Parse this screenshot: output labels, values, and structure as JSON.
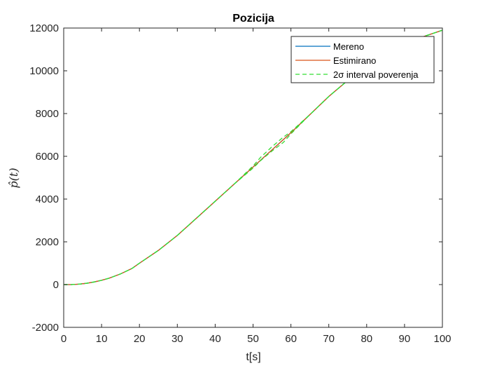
{
  "chart_data": {
    "type": "line",
    "title": "Pozicija",
    "xlabel": "t[s]",
    "ylabel": "p̂(t)",
    "xlim": [
      0,
      100
    ],
    "ylim": [
      -2000,
      12000
    ],
    "xticks": [
      0,
      10,
      20,
      30,
      40,
      50,
      60,
      70,
      80,
      90,
      100
    ],
    "yticks": [
      -2000,
      0,
      2000,
      4000,
      6000,
      8000,
      10000,
      12000
    ],
    "grid": false,
    "legend_position": "top-right",
    "colors": {
      "mereno": "#0072BD",
      "estimirano": "#D95319",
      "interval": "#33DD33"
    },
    "series": [
      {
        "name": "Mereno",
        "style": "solid",
        "x": [
          0,
          2,
          4,
          6,
          8,
          10,
          12,
          15,
          18,
          20,
          25,
          30,
          35,
          40,
          45,
          50,
          55,
          60,
          65,
          70,
          75,
          80,
          85,
          90,
          95,
          100
        ],
        "y": [
          0,
          0,
          20,
          60,
          120,
          200,
          300,
          500,
          750,
          1000,
          1600,
          2300,
          3100,
          3900,
          4700,
          5500,
          6300,
          7100,
          7950,
          8800,
          9550,
          10250,
          10800,
          11250,
          11600,
          11900
        ]
      },
      {
        "name": "Estimirano",
        "style": "solid",
        "x": [
          0,
          2,
          4,
          6,
          8,
          10,
          12,
          15,
          18,
          20,
          25,
          30,
          35,
          40,
          45,
          50,
          55,
          60,
          65,
          70,
          75,
          80,
          85,
          90,
          95,
          100
        ],
        "y": [
          0,
          0,
          20,
          60,
          120,
          200,
          300,
          500,
          750,
          1000,
          1600,
          2300,
          3100,
          3900,
          4700,
          5500,
          6300,
          7100,
          7950,
          8800,
          9550,
          10250,
          10800,
          11250,
          11600,
          11900
        ]
      },
      {
        "name": "2σ interval poverenja",
        "style": "dashed",
        "x": [
          0,
          2,
          4,
          6,
          8,
          10,
          12,
          15,
          18,
          20,
          25,
          30,
          35,
          40,
          45,
          50,
          52,
          55,
          58,
          60,
          65,
          70,
          75,
          80,
          85,
          90,
          95,
          100
        ],
        "y": [
          0,
          0,
          20,
          60,
          120,
          200,
          300,
          500,
          750,
          1000,
          1600,
          2300,
          3100,
          3900,
          4700,
          5550,
          5950,
          6450,
          6900,
          7150,
          7950,
          8800,
          9550,
          10250,
          10800,
          11250,
          11600,
          11900
        ]
      },
      {
        "name": "2σ interval poverenja",
        "style": "dashed",
        "x": [
          0,
          2,
          4,
          6,
          8,
          10,
          12,
          15,
          18,
          20,
          25,
          30,
          35,
          40,
          45,
          50,
          52,
          55,
          58,
          60,
          65,
          70,
          75,
          80,
          85,
          90,
          95,
          100
        ],
        "y": [
          0,
          0,
          20,
          60,
          120,
          200,
          300,
          500,
          750,
          1000,
          1600,
          2300,
          3100,
          3900,
          4700,
          5450,
          5800,
          6250,
          6650,
          7050,
          7950,
          8800,
          9550,
          10250,
          10800,
          11250,
          11600,
          11900
        ]
      }
    ],
    "legend": [
      {
        "label": "Mereno",
        "color": "#0072BD",
        "style": "solid"
      },
      {
        "label": "Estimirano",
        "color": "#D95319",
        "style": "solid"
      },
      {
        "label": "2σ interval poverenja",
        "color": "#33DD33",
        "style": "dashed"
      }
    ]
  }
}
